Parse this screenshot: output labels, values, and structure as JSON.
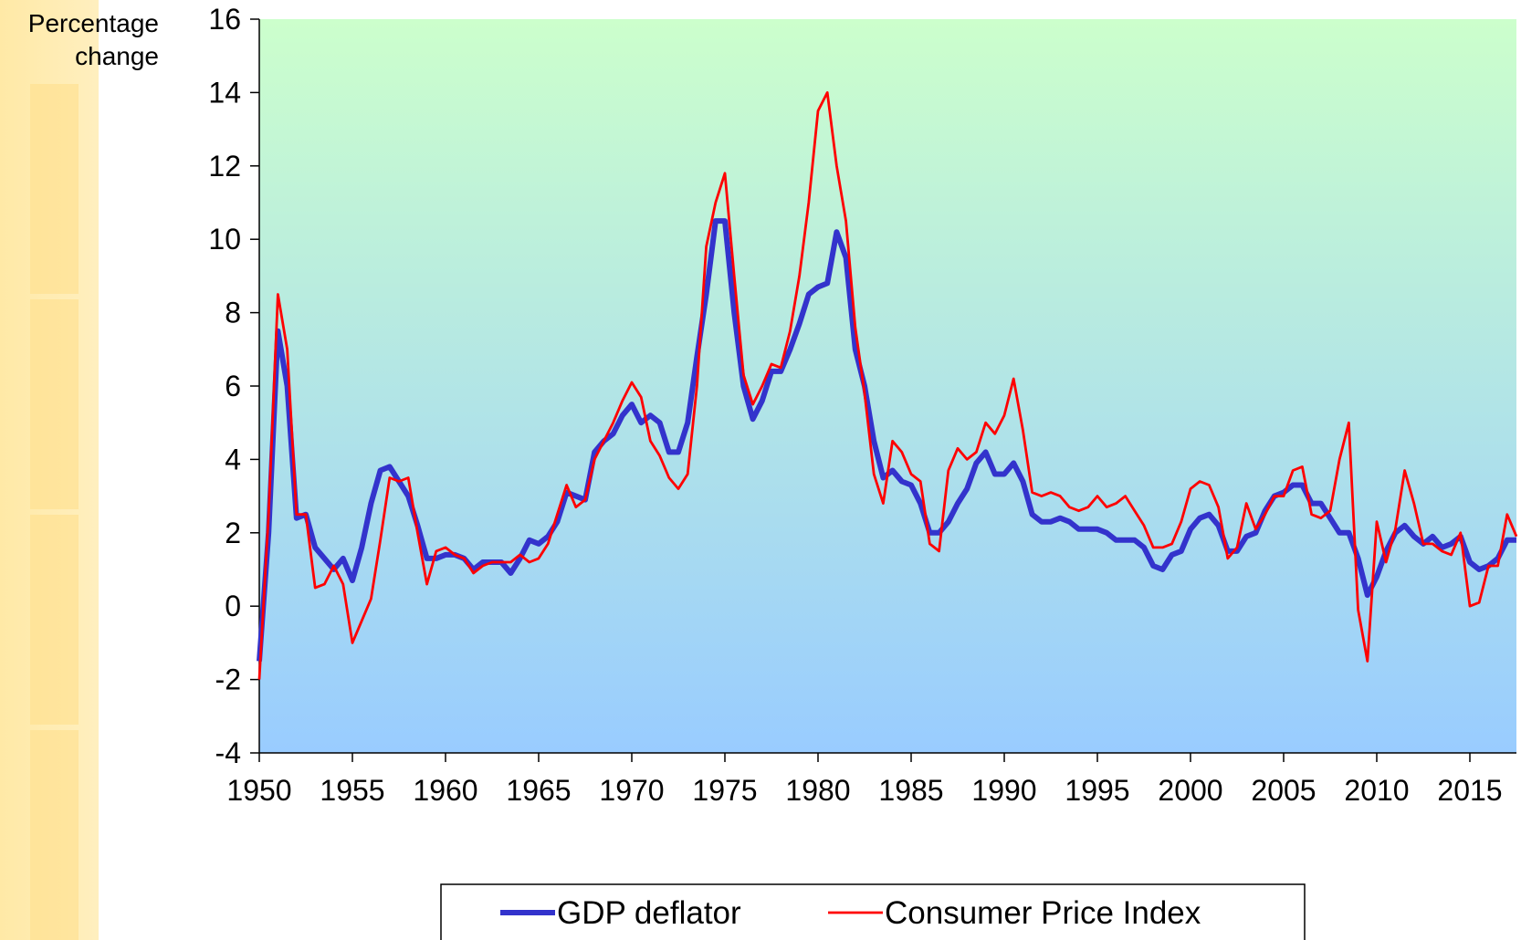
{
  "chart_data": {
    "type": "line",
    "y_label": "Percentage change",
    "x": [
      1950,
      1950.5,
      1951,
      1951.5,
      1952,
      1952.5,
      1953,
      1953.5,
      1954,
      1954.5,
      1955,
      1955.5,
      1956,
      1956.5,
      1957,
      1957.5,
      1958,
      1958.5,
      1959,
      1959.5,
      1960,
      1960.5,
      1961,
      1961.5,
      1962,
      1962.5,
      1963,
      1963.5,
      1964,
      1964.5,
      1965,
      1965.5,
      1966,
      1966.5,
      1967,
      1967.5,
      1968,
      1968.5,
      1969,
      1969.5,
      1970,
      1970.5,
      1971,
      1971.5,
      1972,
      1972.5,
      1973,
      1973.5,
      1974,
      1974.5,
      1975,
      1975.5,
      1976,
      1976.5,
      1977,
      1977.5,
      1978,
      1978.5,
      1979,
      1979.5,
      1980,
      1980.5,
      1981,
      1981.5,
      1982,
      1982.5,
      1983,
      1983.5,
      1984,
      1984.5,
      1985,
      1985.5,
      1986,
      1986.5,
      1987,
      1987.5,
      1988,
      1988.5,
      1989,
      1989.5,
      1990,
      1990.5,
      1991,
      1991.5,
      1992,
      1992.5,
      1993,
      1993.5,
      1994,
      1994.5,
      1995,
      1995.5,
      1996,
      1996.5,
      1997,
      1997.5,
      1998,
      1998.5,
      1999,
      1999.5,
      2000,
      2000.5,
      2001,
      2001.5,
      2002,
      2002.5,
      2003,
      2003.5,
      2004,
      2004.5,
      2005,
      2005.5,
      2006,
      2006.5,
      2007,
      2007.5,
      2008,
      2008.5,
      2009,
      2009.5,
      2010,
      2010.5,
      2011,
      2011.5,
      2012,
      2012.5,
      2013,
      2013.5,
      2014,
      2014.5,
      2015,
      2015.5,
      2016,
      2016.5,
      2017,
      2017.5
    ],
    "series": [
      {
        "name": "GDP deflator",
        "color": "#3333cc",
        "values": [
          -1.5,
          2.0,
          7.5,
          6.0,
          2.4,
          2.5,
          1.6,
          1.3,
          1.0,
          1.3,
          0.7,
          1.6,
          2.8,
          3.7,
          3.8,
          3.4,
          3.0,
          2.2,
          1.3,
          1.3,
          1.4,
          1.4,
          1.3,
          1.0,
          1.2,
          1.2,
          1.2,
          0.9,
          1.3,
          1.8,
          1.7,
          1.9,
          2.3,
          3.1,
          3.0,
          2.9,
          4.2,
          4.5,
          4.7,
          5.2,
          5.5,
          5.0,
          5.2,
          5.0,
          4.2,
          4.2,
          5.0,
          6.8,
          8.5,
          10.5,
          10.5,
          8.0,
          6.0,
          5.1,
          5.6,
          6.4,
          6.4,
          7.0,
          7.7,
          8.5,
          8.7,
          8.8,
          10.2,
          9.5,
          7.0,
          6.0,
          4.5,
          3.5,
          3.7,
          3.4,
          3.3,
          2.8,
          2.0,
          2.0,
          2.3,
          2.8,
          3.2,
          3.9,
          4.2,
          3.6,
          3.6,
          3.9,
          3.4,
          2.5,
          2.3,
          2.3,
          2.4,
          2.3,
          2.1,
          2.1,
          2.1,
          2.0,
          1.8,
          1.8,
          1.8,
          1.6,
          1.1,
          1.0,
          1.4,
          1.5,
          2.1,
          2.4,
          2.5,
          2.2,
          1.5,
          1.5,
          1.9,
          2.0,
          2.6,
          3.0,
          3.1,
          3.3,
          3.3,
          2.8,
          2.8,
          2.4,
          2.0,
          2.0,
          1.3,
          0.3,
          0.8,
          1.5,
          2.0,
          2.2,
          1.9,
          1.7,
          1.9,
          1.6,
          1.7,
          1.9,
          1.2,
          1.0,
          1.1,
          1.3,
          1.8,
          1.8
        ]
      },
      {
        "name": "Consumer Price Index",
        "color": "#ff0000",
        "values": [
          -2.0,
          2.5,
          8.5,
          7.0,
          2.5,
          2.5,
          0.5,
          0.6,
          1.1,
          0.6,
          -1.0,
          -0.4,
          0.2,
          1.8,
          3.5,
          3.4,
          3.5,
          2.0,
          0.6,
          1.5,
          1.6,
          1.4,
          1.3,
          0.9,
          1.1,
          1.2,
          1.2,
          1.2,
          1.4,
          1.2,
          1.3,
          1.7,
          2.5,
          3.3,
          2.7,
          2.9,
          4.0,
          4.5,
          5.0,
          5.6,
          6.1,
          5.7,
          4.5,
          4.1,
          3.5,
          3.2,
          3.6,
          6.0,
          9.8,
          11.0,
          11.8,
          9.0,
          6.3,
          5.5,
          6.0,
          6.6,
          6.5,
          7.5,
          9.0,
          11.0,
          13.5,
          14.0,
          12.0,
          10.5,
          7.6,
          5.8,
          3.6,
          2.8,
          4.5,
          4.2,
          3.6,
          3.4,
          1.7,
          1.5,
          3.7,
          4.3,
          4.0,
          4.2,
          5.0,
          4.7,
          5.2,
          6.2,
          4.8,
          3.1,
          3.0,
          3.1,
          3.0,
          2.7,
          2.6,
          2.7,
          3.0,
          2.7,
          2.8,
          3.0,
          2.6,
          2.2,
          1.6,
          1.6,
          1.7,
          2.3,
          3.2,
          3.4,
          3.3,
          2.7,
          1.3,
          1.6,
          2.8,
          2.1,
          2.5,
          3.0,
          3.0,
          3.7,
          3.8,
          2.5,
          2.4,
          2.6,
          4.0,
          5.0,
          -0.1,
          -1.5,
          2.3,
          1.2,
          2.1,
          3.7,
          2.8,
          1.7,
          1.7,
          1.5,
          1.4,
          2.0,
          0.0,
          0.1,
          1.1,
          1.1,
          2.5,
          1.9
        ]
      }
    ],
    "xlim": [
      1950,
      2017.5
    ],
    "xticks": [
      1950,
      1955,
      1960,
      1965,
      1970,
      1975,
      1980,
      1985,
      1990,
      1995,
      2000,
      2005,
      2010,
      2015
    ],
    "ylim": [
      -4,
      16
    ],
    "yticks": [
      -4,
      -2,
      0,
      2,
      4,
      6,
      8,
      10,
      12,
      14,
      16
    ],
    "grid": false,
    "legend": "bottom"
  }
}
